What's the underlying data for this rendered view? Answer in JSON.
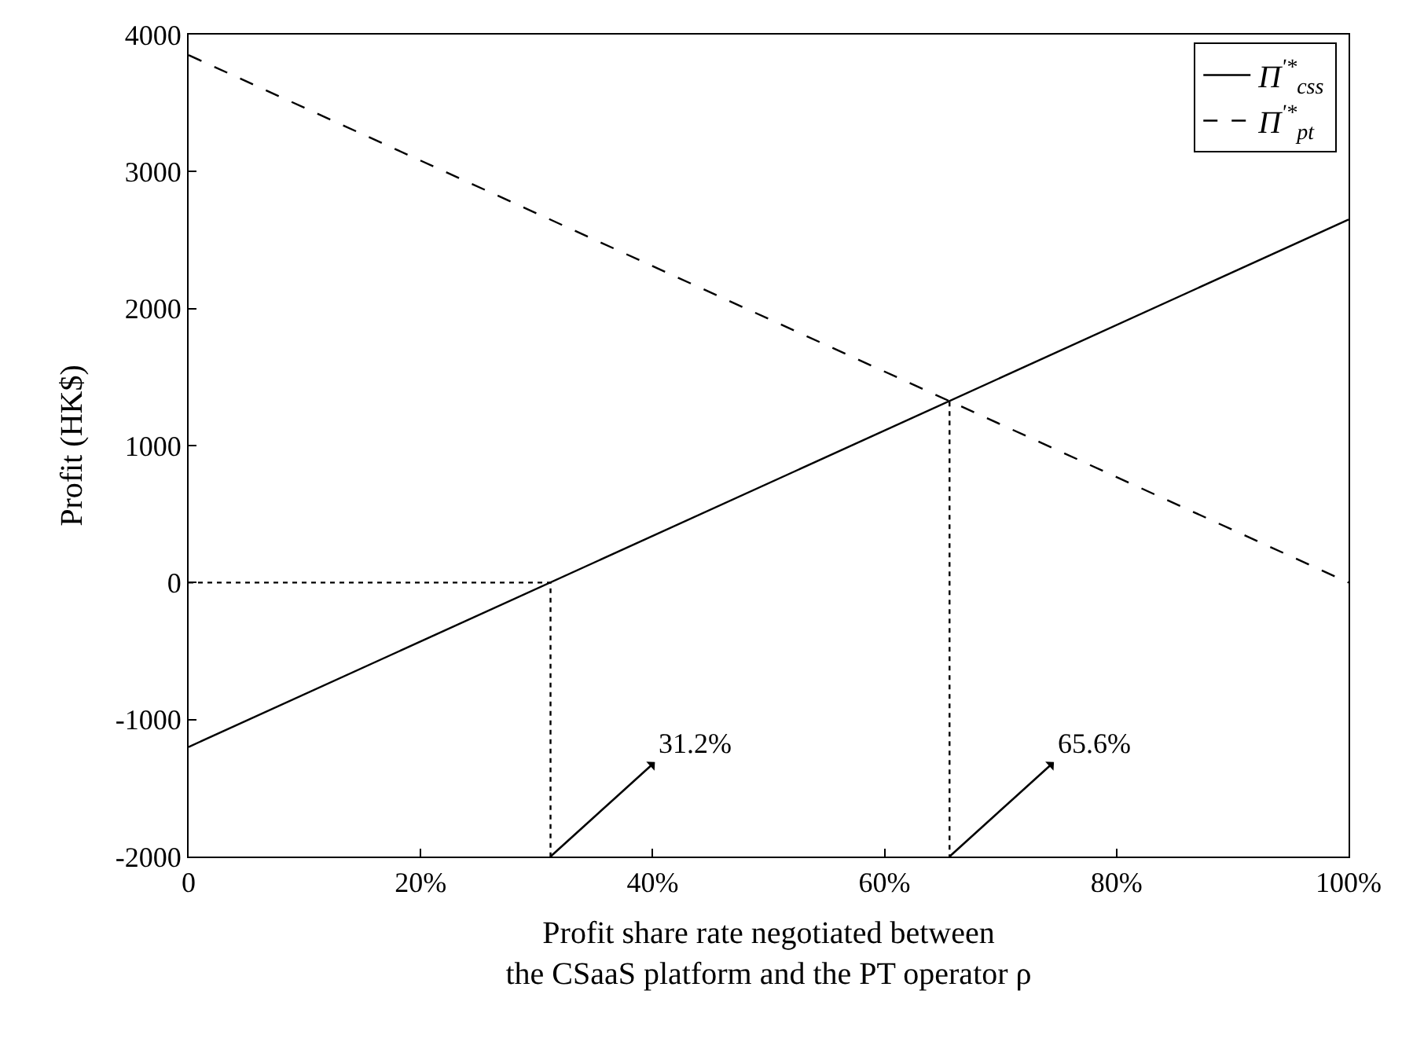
{
  "chart_data": {
    "type": "line",
    "xlabel": "Profit share rate negotiated between\nthe CSaaS platform and the PT operator ρ",
    "ylabel": "Profit (HK$)",
    "series": [
      {
        "name": "Π$^{'*}$$_{css}$",
        "color": "#000000",
        "line_style": "solid",
        "x": [
          0,
          1
        ],
        "values": [
          -1200,
          2650
        ]
      },
      {
        "name": "Π$^{'*}$$_{pt}$",
        "color": "#000000",
        "line_style": "dashed",
        "x": [
          0,
          1
        ],
        "values": [
          3850,
          0
        ]
      },
      {
        "color": "#000000",
        "line_style": "dotted",
        "x": [
          0,
          0.312,
          0.312
        ],
        "values": [
          0,
          0,
          -2000
        ]
      },
      {
        "color": "#000000",
        "line_style": "dotted",
        "x": [
          0.656,
          0.656
        ],
        "values": [
          1320,
          -2000
        ]
      }
    ],
    "annotations": [
      {
        "text": "31.2%",
        "x": 0.312,
        "y": -2000
      },
      {
        "text": "65.6%",
        "x": 0.656,
        "y": -2000
      }
    ],
    "xlim": [
      0,
      1
    ],
    "ylim": [
      -2000,
      4000
    ],
    "xticks": [
      0,
      {
        "value": 0.2,
        "label": "20%"
      },
      {
        "value": 0.4,
        "label": "40%"
      },
      {
        "value": 0.6,
        "label": "60%"
      },
      {
        "value": 0.8,
        "label": "80%"
      },
      {
        "value": 1,
        "label": "100%"
      }
    ],
    "yticks": [
      -2000,
      -1000,
      0,
      1000,
      2000,
      3000,
      4000
    ],
    "legend": "top right",
    "marker": "none"
  }
}
